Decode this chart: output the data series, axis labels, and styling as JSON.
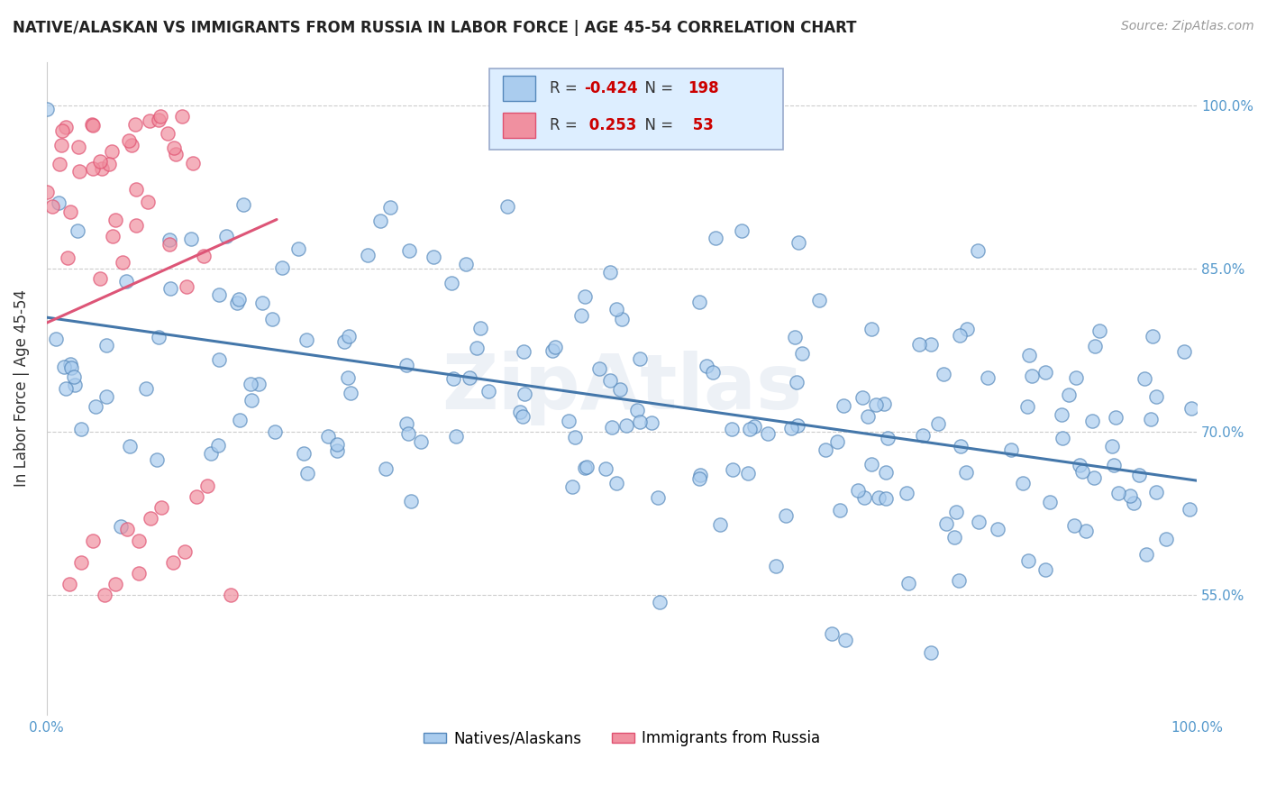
{
  "title": "NATIVE/ALASKAN VS IMMIGRANTS FROM RUSSIA IN LABOR FORCE | AGE 45-54 CORRELATION CHART",
  "source": "Source: ZipAtlas.com",
  "ylabel": "In Labor Force | Age 45-54",
  "x_range": [
    0.0,
    1.0
  ],
  "y_range": [
    0.44,
    1.04
  ],
  "blue_R": -0.424,
  "blue_N": 198,
  "pink_R": 0.253,
  "pink_N": 53,
  "blue_color": "#aaccee",
  "pink_color": "#f090a0",
  "blue_edge_color": "#5588bb",
  "pink_edge_color": "#e05070",
  "blue_line_color": "#4477aa",
  "pink_line_color": "#dd5577",
  "watermark": "ZipAtlas",
  "y_tick_positions": [
    0.55,
    0.7,
    0.85,
    1.0
  ],
  "y_tick_labels": [
    "55.0%",
    "70.0%",
    "85.0%",
    "100.0%"
  ],
  "blue_trend_x0": 0.0,
  "blue_trend_y0": 0.805,
  "blue_trend_x1": 1.0,
  "blue_trend_y1": 0.655,
  "pink_trend_x0": 0.0,
  "pink_trend_y0": 0.8,
  "pink_trend_x1": 0.2,
  "pink_trend_y1": 0.895
}
